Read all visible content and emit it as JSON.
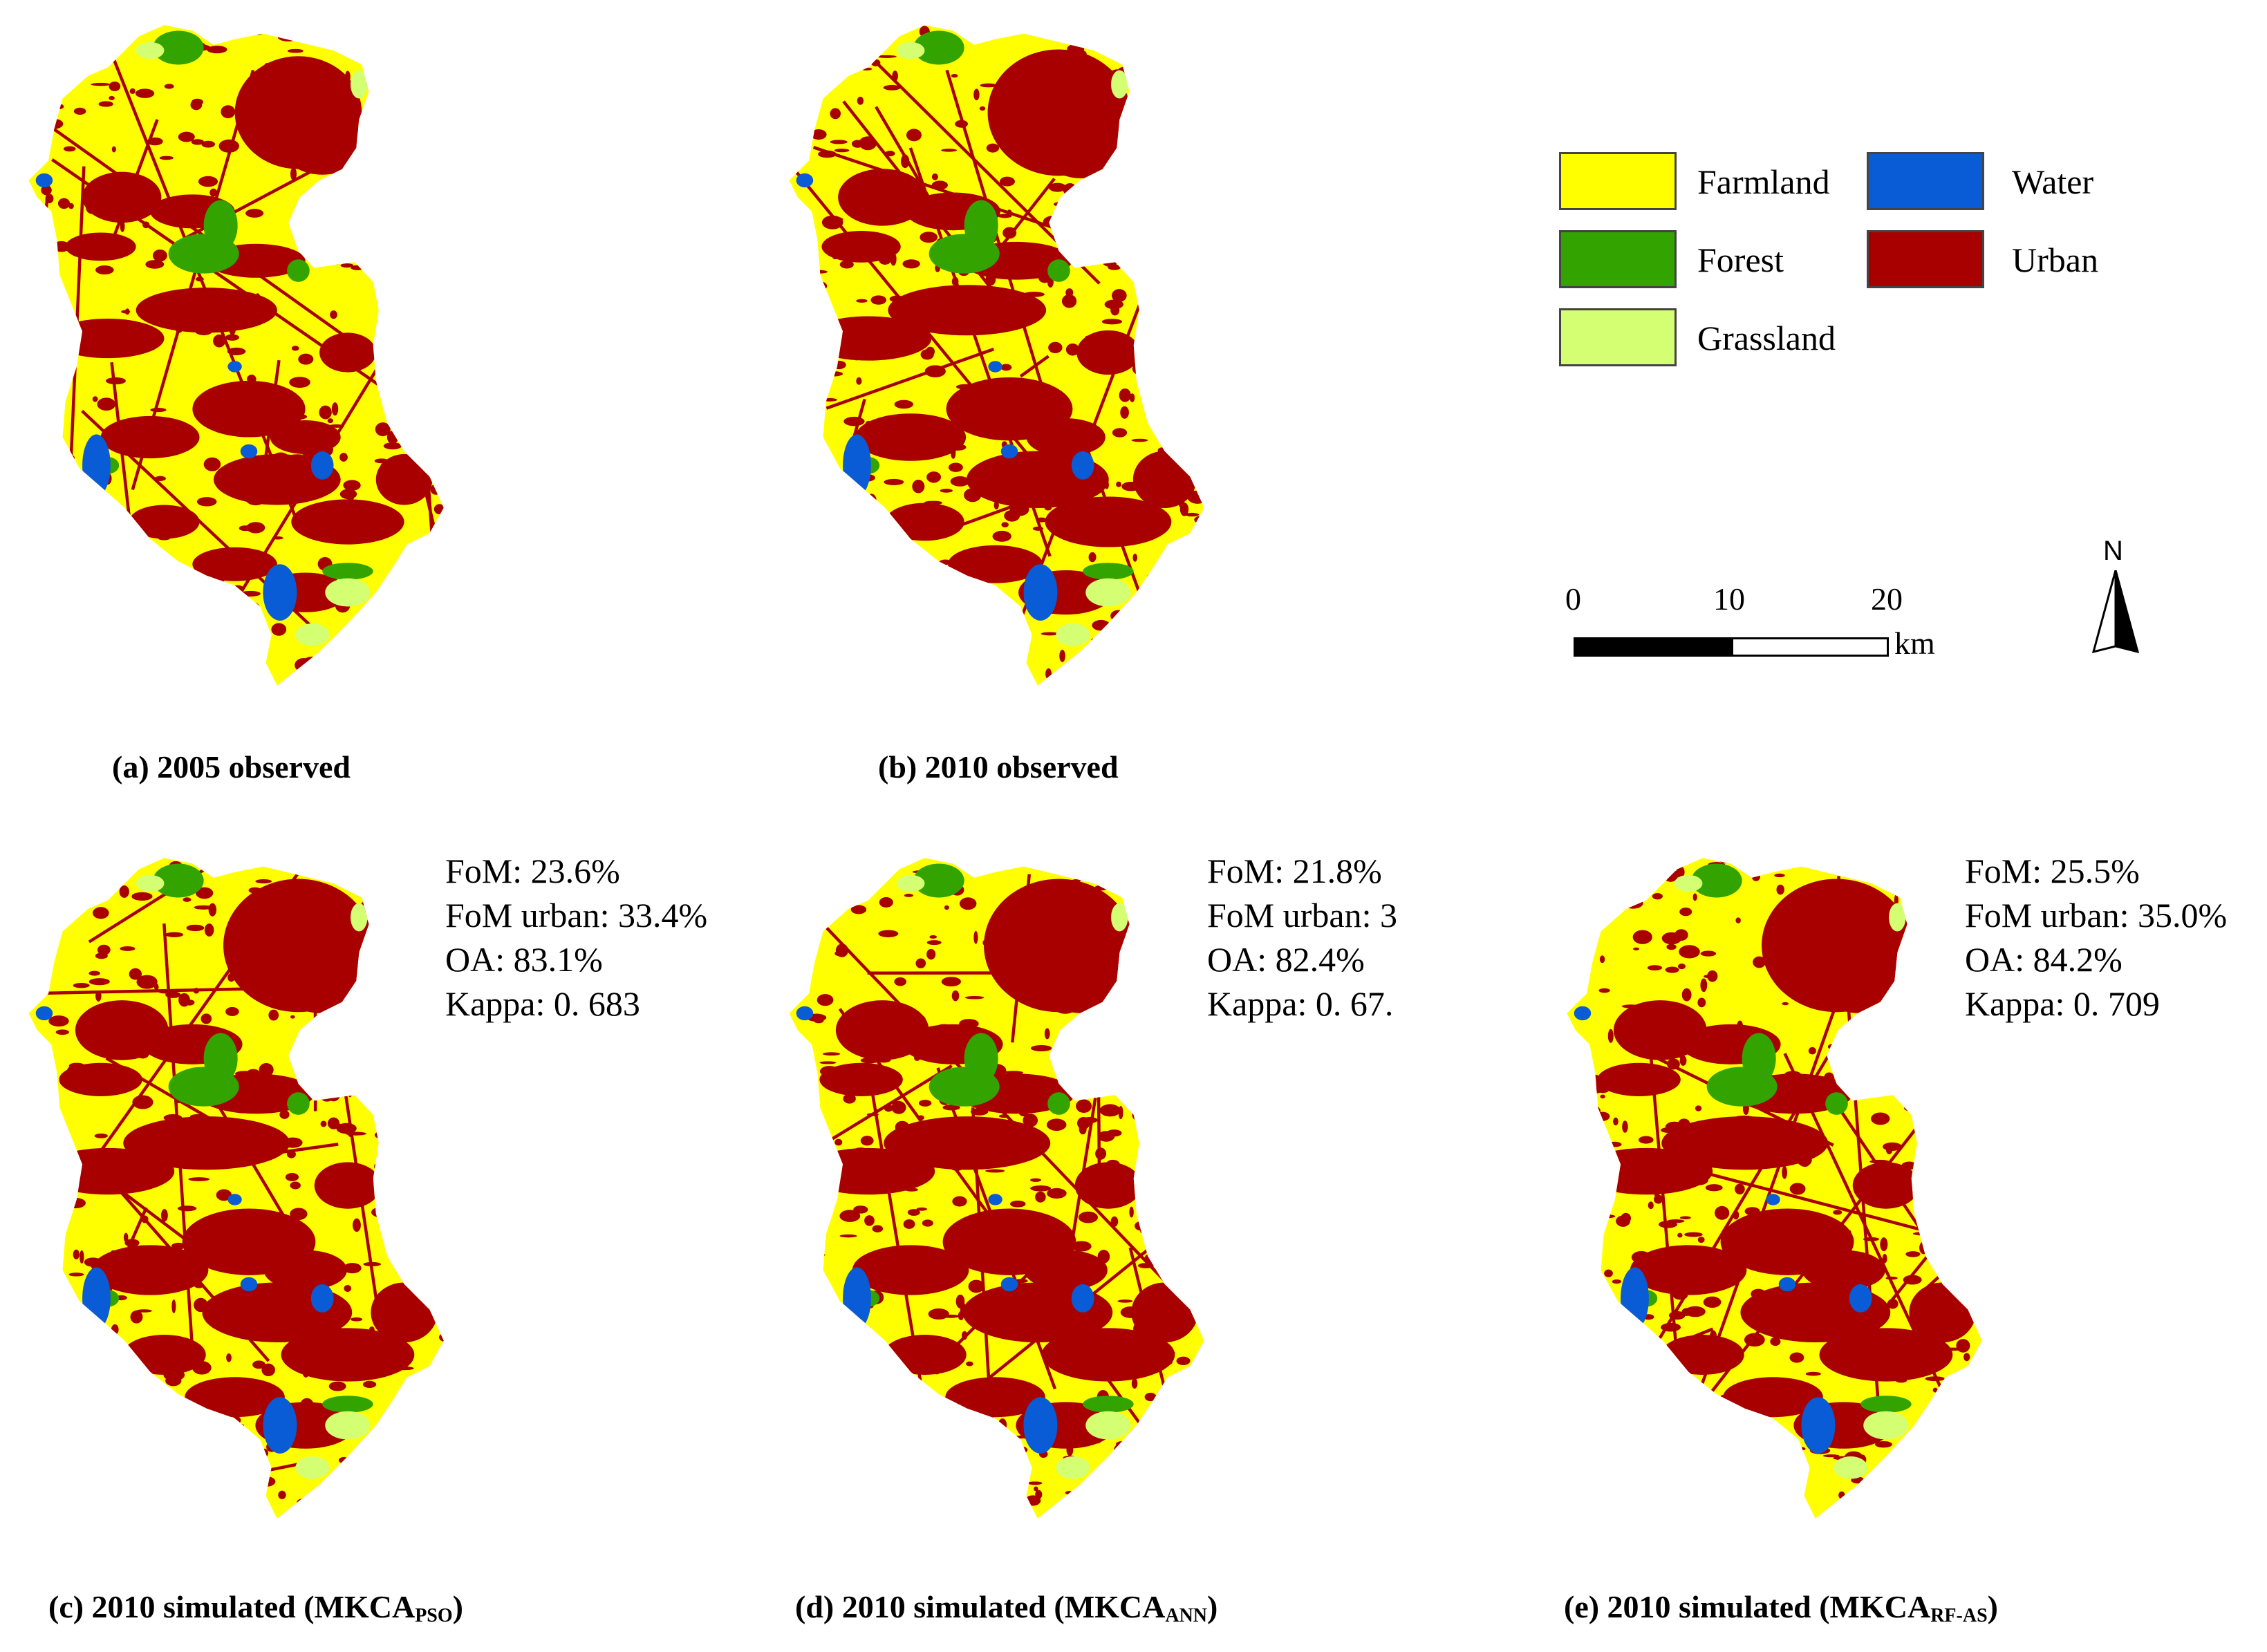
{
  "colors": {
    "farmland": "#ffff00",
    "forest": "#33a300",
    "grassland": "#d4ff73",
    "water": "#0a5cd6",
    "urban": "#a80000"
  },
  "panels": [
    {
      "id": "a",
      "caption": "(a) 2005 observed",
      "sub": "",
      "caption_tail": "",
      "stats": []
    },
    {
      "id": "b",
      "caption": "(b) 2010 observed",
      "sub": "",
      "caption_tail": "",
      "stats": []
    },
    {
      "id": "c",
      "caption": "(c) 2010 simulated (MKCA",
      "sub": "PSO",
      "caption_tail": ")",
      "stats": [
        "FoM: 23.6%",
        "FoM urban: 33.4%",
        "OA: 83.1%",
        "Kappa: 0. 683"
      ]
    },
    {
      "id": "d",
      "caption": "(d) 2010 simulated (MKCA",
      "sub": "ANN",
      "caption_tail": ")",
      "stats": [
        "FoM: 21.8%",
        "FoM urban: 3",
        "OA: 82.4%",
        "Kappa: 0. 67."
      ]
    },
    {
      "id": "e",
      "caption": "(e) 2010 simulated (MKCA",
      "sub": "RF-AS",
      "caption_tail": ")",
      "stats": [
        "FoM: 25.5%",
        "FoM urban: 35.0%",
        "OA: 84.2%",
        "Kappa: 0. 709"
      ]
    }
  ],
  "legend": {
    "items": [
      {
        "label": "Farmland",
        "color_key": "farmland"
      },
      {
        "label": "Water",
        "color_key": "water"
      },
      {
        "label": "Forest",
        "color_key": "forest"
      },
      {
        "label": "Urban",
        "color_key": "urban"
      },
      {
        "label": "Grassland",
        "color_key": "grassland"
      }
    ]
  },
  "scale_bar": {
    "ticks": [
      "0",
      "10",
      "20"
    ],
    "unit": "km"
  },
  "north_arrow": {
    "label": "N"
  }
}
